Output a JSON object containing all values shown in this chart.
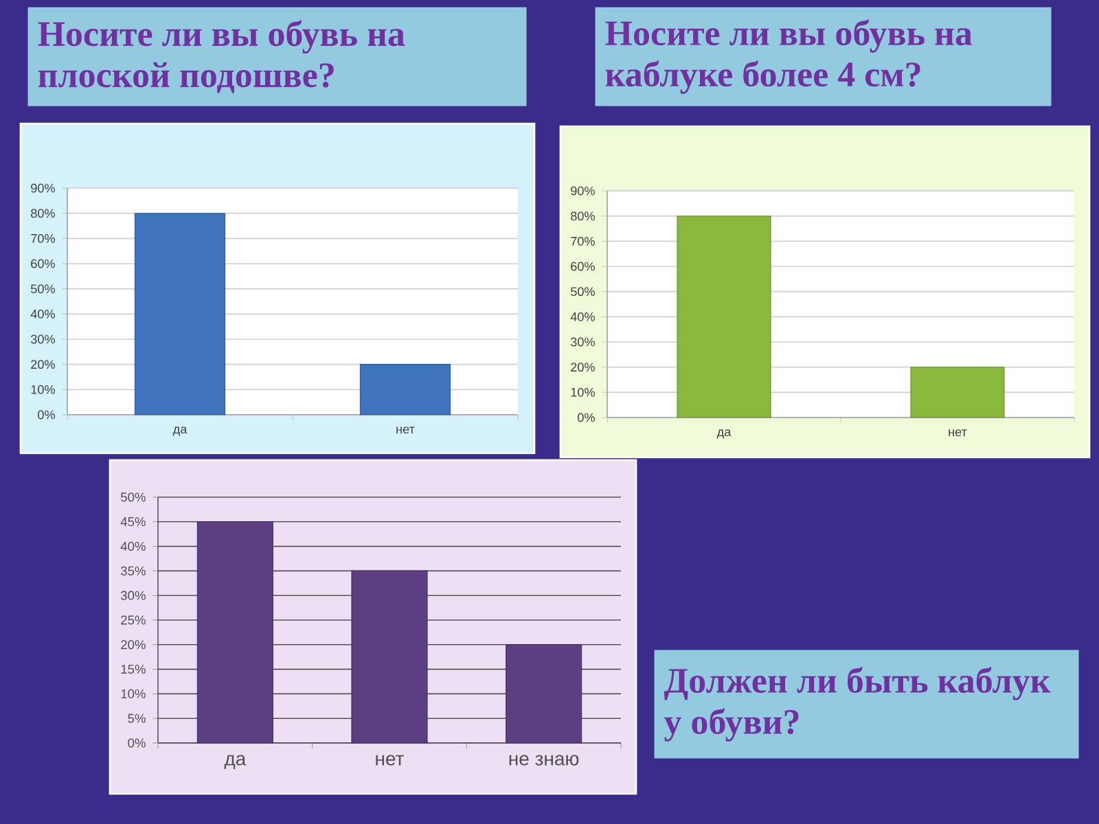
{
  "chart_data": [
    {
      "type": "bar",
      "title": "Носите ли вы обувь на плоской подошве?",
      "categories": [
        "да",
        "нет"
      ],
      "values": [
        80,
        20
      ],
      "color": "#3f74bd",
      "ylim": [
        0,
        90
      ],
      "yticks": [
        {
          "value": 0,
          "label": "0%"
        },
        {
          "value": 10,
          "label": "10%"
        },
        {
          "value": 20,
          "label": "20%"
        },
        {
          "value": 30,
          "label": "30%"
        },
        {
          "value": 40,
          "label": "40%"
        },
        {
          "value": 50,
          "label": "50%"
        },
        {
          "value": 60,
          "label": "60%"
        },
        {
          "value": 70,
          "label": "70%"
        },
        {
          "value": 80,
          "label": "80%"
        },
        {
          "value": 90,
          "label": "90%"
        }
      ],
      "grid": "y"
    },
    {
      "type": "bar",
      "title": "Носите ли вы обувь на каблуке более 4 см?",
      "categories": [
        "да",
        "нет"
      ],
      "values": [
        80,
        20
      ],
      "color": "#8ab83c",
      "ylim": [
        0,
        90
      ],
      "yticks": [
        {
          "value": 0,
          "label": "0%"
        },
        {
          "value": 10,
          "label": "10%"
        },
        {
          "value": 20,
          "label": "20%"
        },
        {
          "value": 30,
          "label": "30%"
        },
        {
          "value": 40,
          "label": "40%"
        },
        {
          "value": 50,
          "label": "50%"
        },
        {
          "value": 60,
          "label": "60%"
        },
        {
          "value": 70,
          "label": "70%"
        },
        {
          "value": 80,
          "label": "80%"
        },
        {
          "value": 90,
          "label": "90%"
        }
      ],
      "grid": "y"
    },
    {
      "type": "bar",
      "annotations": [
        "Должен ли быть каблук у обуви?"
      ],
      "categories": [
        "да",
        "нет",
        "не знаю"
      ],
      "values": [
        45,
        35,
        20
      ],
      "color": "#5c3f82",
      "ylim": [
        0,
        50
      ],
      "yticks": [
        {
          "value": 0,
          "label": "0%"
        },
        {
          "value": 5,
          "label": "5%"
        },
        {
          "value": 10,
          "label": "10%"
        },
        {
          "value": 15,
          "label": "15%"
        },
        {
          "value": 20,
          "label": "20%"
        },
        {
          "value": 25,
          "label": "25%"
        },
        {
          "value": 30,
          "label": "30%"
        },
        {
          "value": 35,
          "label": "35%"
        },
        {
          "value": 40,
          "label": "40%"
        },
        {
          "value": 45,
          "label": "45%"
        },
        {
          "value": 50,
          "label": "50%"
        }
      ],
      "grid": "y"
    }
  ]
}
